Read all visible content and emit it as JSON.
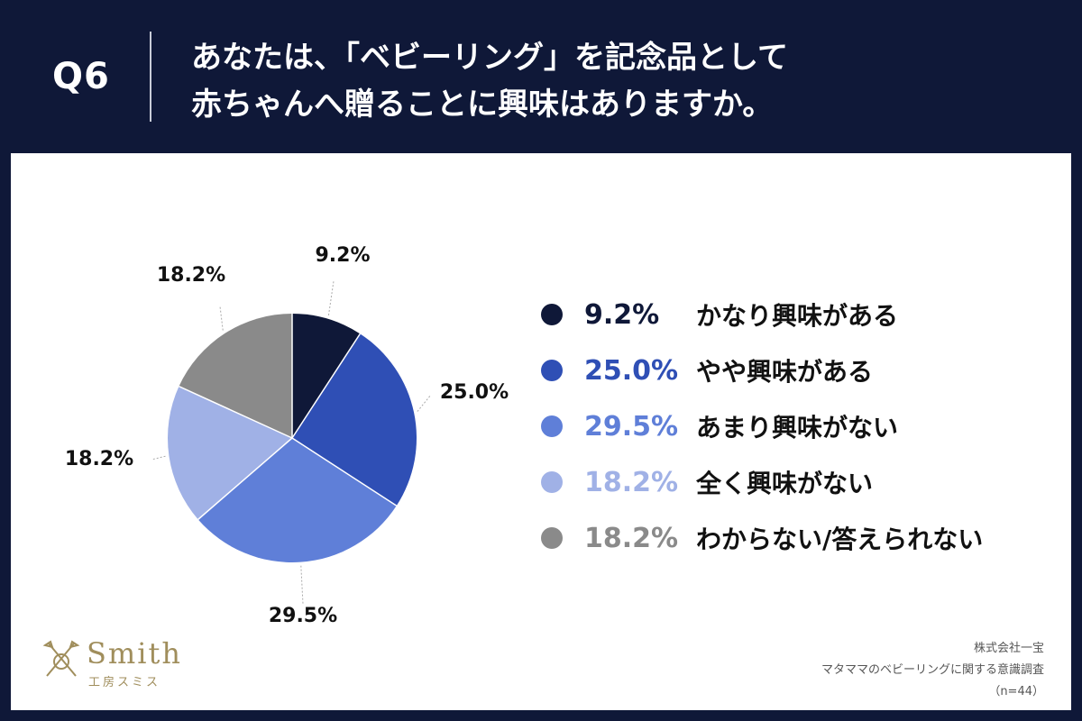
{
  "header": {
    "question_no": "Q6",
    "question_line1": "あなたは、「ベビーリング」を記念品として",
    "question_line2": "赤ちゃんへ贈ることに興味はありますか。"
  },
  "chart_data": {
    "type": "pie",
    "slices": [
      {
        "label": "かなり興味がある",
        "value": 9.2,
        "value_label": "9.2%",
        "color": "#0f1838"
      },
      {
        "label": "やや興味がある",
        "value": 25.0,
        "value_label": "25.0%",
        "color": "#2f4fb5"
      },
      {
        "label": "あまり興味がない",
        "value": 29.5,
        "value_label": "29.5%",
        "color": "#5f7fd8"
      },
      {
        "label": "全く興味がない",
        "value": 18.2,
        "value_label": "18.2%",
        "color": "#a0b1e6"
      },
      {
        "label": "わからない/答えられない",
        "value": 18.2,
        "value_label": "18.2%",
        "color": "#8a8a8a"
      }
    ],
    "legend_position": "right"
  },
  "logo": {
    "name": "Smith",
    "subtitle": "工房スミス"
  },
  "source": {
    "company": "株式会社一宝",
    "survey": "マタママのベビーリングに関する意識調査",
    "sample": "（n=44）"
  }
}
